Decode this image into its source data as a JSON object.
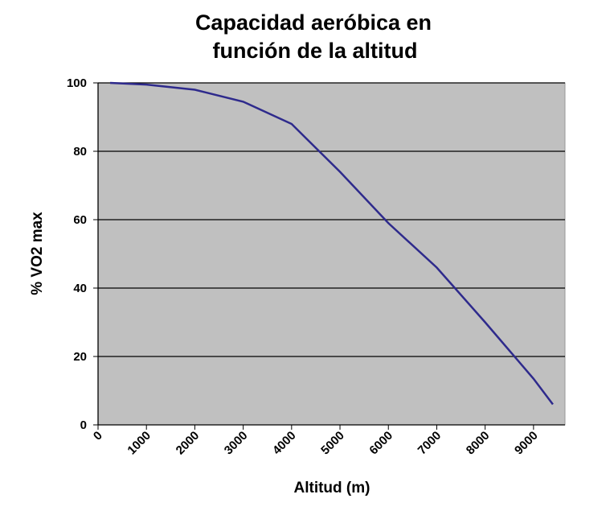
{
  "chart_data": {
    "type": "line",
    "title": [
      "Capacidad aeróbica en",
      "función de la altitud"
    ],
    "x_label": "Altitud (m)",
    "y_label": "% VO2 max",
    "x": [
      250,
      1000,
      2000,
      3000,
      4000,
      5000,
      6000,
      7000,
      8000,
      9000,
      9400
    ],
    "series": [
      {
        "name": "VO2 max",
        "color": "#2e2a8c",
        "values": [
          100,
          99.5,
          98,
          94.5,
          88,
          74,
          59,
          46,
          30,
          13.5,
          6
        ]
      }
    ],
    "xlim": [
      0,
      9650
    ],
    "xticks": [
      0,
      1000,
      2000,
      3000,
      4000,
      5000,
      6000,
      7000,
      8000,
      9000
    ],
    "ylim": [
      0,
      100
    ],
    "yticks": [
      0,
      20,
      40,
      60,
      80,
      100
    ],
    "grid": true,
    "plot_background": "#c0c0c0"
  }
}
